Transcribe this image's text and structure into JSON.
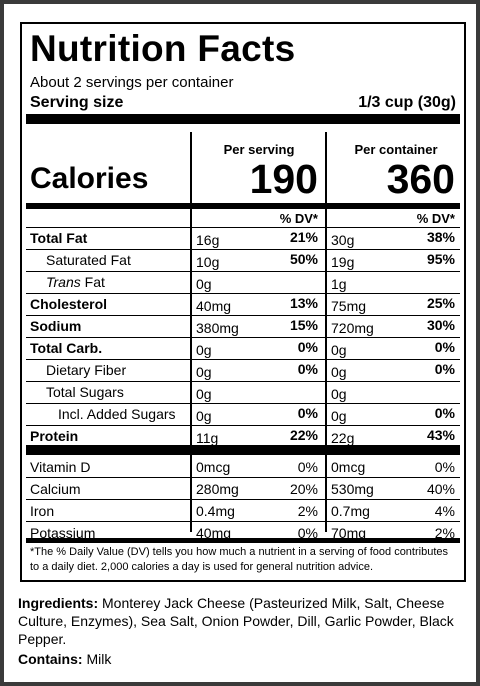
{
  "label": {
    "title": "Nutrition Facts",
    "servings_per_container": "About 2 servings per container",
    "serving_size_label": "Serving size",
    "serving_size_value": "1/3 cup (30g)",
    "col_serving": "Per serving",
    "col_container": "Per container",
    "calories_label": "Calories",
    "calories_serving": "190",
    "calories_container": "360",
    "dv_header": "% DV*",
    "nutrients": [
      {
        "name": "Total Fat",
        "bold": true,
        "indent": 0,
        "italic_prefix": "",
        "serving_amount": "16g",
        "serving_dv": "21%",
        "container_amount": "30g",
        "container_dv": "38%"
      },
      {
        "name": "Saturated Fat",
        "bold": false,
        "indent": 1,
        "italic_prefix": "",
        "serving_amount": "10g",
        "serving_dv": "50%",
        "container_amount": "19g",
        "container_dv": "95%"
      },
      {
        "name": " Fat",
        "bold": false,
        "indent": 1,
        "italic_prefix": "Trans",
        "serving_amount": "0g",
        "serving_dv": "",
        "container_amount": "1g",
        "container_dv": ""
      },
      {
        "name": "Cholesterol",
        "bold": true,
        "indent": 0,
        "italic_prefix": "",
        "serving_amount": "40mg",
        "serving_dv": "13%",
        "container_amount": "75mg",
        "container_dv": "25%"
      },
      {
        "name": "Sodium",
        "bold": true,
        "indent": 0,
        "italic_prefix": "",
        "serving_amount": "380mg",
        "serving_dv": "15%",
        "container_amount": "720mg",
        "container_dv": "30%"
      },
      {
        "name": "Total Carb.",
        "bold": true,
        "indent": 0,
        "italic_prefix": "",
        "serving_amount": "0g",
        "serving_dv": "0%",
        "container_amount": "0g",
        "container_dv": "0%"
      },
      {
        "name": "Dietary Fiber",
        "bold": false,
        "indent": 1,
        "italic_prefix": "",
        "serving_amount": "0g",
        "serving_dv": "0%",
        "container_amount": "0g",
        "container_dv": "0%"
      },
      {
        "name": "Total Sugars",
        "bold": false,
        "indent": 1,
        "italic_prefix": "",
        "serving_amount": "0g",
        "serving_dv": "",
        "container_amount": "0g",
        "container_dv": ""
      },
      {
        "name": "Incl. Added Sugars",
        "bold": false,
        "indent": 2,
        "italic_prefix": "",
        "serving_amount": "0g",
        "serving_dv": "0%",
        "container_amount": "0g",
        "container_dv": "0%"
      },
      {
        "name": "Protein",
        "bold": true,
        "indent": 0,
        "italic_prefix": "",
        "serving_amount": "11g",
        "serving_dv": "22%",
        "container_amount": "22g",
        "container_dv": "43%"
      }
    ],
    "vitamins": [
      {
        "name": "Vitamin D",
        "serving_amount": "0mcg",
        "serving_dv": "0%",
        "container_amount": "0mcg",
        "container_dv": "0%"
      },
      {
        "name": "Calcium",
        "serving_amount": "280mg",
        "serving_dv": "20%",
        "container_amount": "530mg",
        "container_dv": "40%"
      },
      {
        "name": "Iron",
        "serving_amount": "0.4mg",
        "serving_dv": "2%",
        "container_amount": "0.7mg",
        "container_dv": "4%"
      },
      {
        "name": "Potassium",
        "serving_amount": "40mg",
        "serving_dv": "0%",
        "container_amount": "70mg",
        "container_dv": "2%"
      }
    ],
    "footnote": "*The % Daily Value (DV) tells you how much a nutrient in a serving of food contributes to a daily diet. 2,000 calories a day is used for general nutrition advice."
  },
  "ingredients": {
    "label": "Ingredients:",
    "text": " Monterey Jack Cheese (Pasteurized Milk, Salt, Cheese Culture, Enzymes), Sea Salt, Onion Powder, Dill, Garlic Powder, Black Pepper."
  },
  "contains": {
    "label": "Contains:",
    "text": " Milk"
  }
}
